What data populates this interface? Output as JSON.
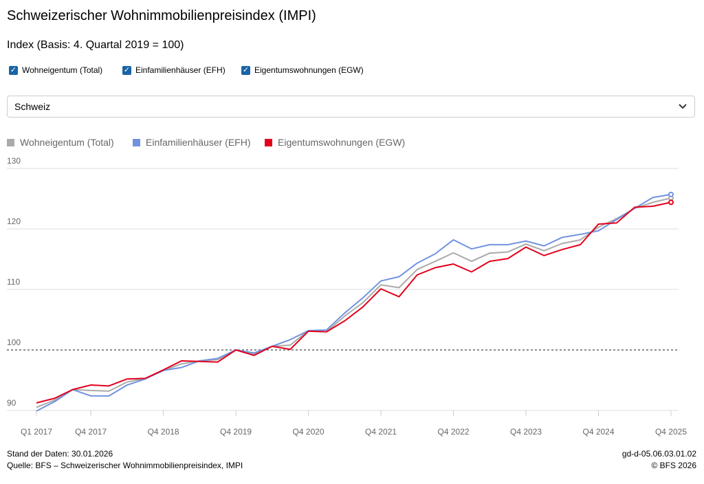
{
  "title": "Schweizerischer Wohnimmobilienpreisindex (IMPI)",
  "subtitle": "Index (Basis: 4. Quartal 2019 = 100)",
  "checkboxes": [
    {
      "label": "Wohneigentum (Total)",
      "checked": true
    },
    {
      "label": "Einfamilienhäuser (EFH)",
      "checked": true
    },
    {
      "label": "Eigentumswohnungen (EGW)",
      "checked": true
    }
  ],
  "dropdown": {
    "selected": "Schweiz",
    "icon": "chevron-down-icon"
  },
  "footer": {
    "stand": "Stand der Daten: 30.01.2026",
    "quelle": "Quelle: BFS – Schweizerischer Wohnimmobilienpreisindex, IMPI",
    "code": "gd-d-05.06.03.01.02",
    "copyright": "© BFS 2026"
  },
  "chart_data": {
    "type": "line",
    "ylim": [
      90,
      130
    ],
    "yticks": [
      "90",
      "100",
      "110",
      "120",
      "130"
    ],
    "reference_line": 100,
    "grid": true,
    "legend_position": "top-left",
    "x": [
      "Q1 2017",
      "Q2 2017",
      "Q3 2017",
      "Q4 2017",
      "Q1 2018",
      "Q2 2018",
      "Q3 2018",
      "Q4 2018",
      "Q1 2019",
      "Q2 2019",
      "Q3 2019",
      "Q4 2019",
      "Q1 2020",
      "Q2 2020",
      "Q3 2020",
      "Q4 2020",
      "Q1 2021",
      "Q2 2021",
      "Q3 2021",
      "Q4 2021",
      "Q1 2022",
      "Q2 2022",
      "Q3 2022",
      "Q4 2022",
      "Q1 2023",
      "Q2 2023",
      "Q3 2023",
      "Q4 2023",
      "Q1 2024",
      "Q2 2024",
      "Q3 2024",
      "Q4 2024",
      "Q1 2025",
      "Q2 2025",
      "Q3 2025",
      "Q4 2025"
    ],
    "xtick_labels": [
      "Q1 2017",
      "Q4 2017",
      "Q4 2018",
      "Q4 2019",
      "Q4 2020",
      "Q4 2021",
      "Q4 2022",
      "Q4 2023",
      "Q4 2024",
      "Q4 2025"
    ],
    "series": [
      {
        "name": "Wohneigentum (Total)",
        "color": "#aaaaaa",
        "values": [
          90.5,
          91.7,
          93.45,
          93.3,
          93.2,
          94.7,
          95.3,
          96.6,
          97.7,
          98.2,
          98.4,
          100.0,
          99.3,
          100.6,
          100.8,
          103.2,
          103.0,
          105.6,
          107.8,
          110.75,
          110.3,
          113.3,
          114.65,
          116.05,
          114.65,
          116.0,
          116.2,
          117.5,
          116.4,
          117.6,
          118.2,
          120.3,
          121.7,
          123.4,
          124.4,
          125.1
        ]
      },
      {
        "name": "Einfamilienhäuser (EFH)",
        "color": "#7092e0",
        "values": [
          89.9,
          91.45,
          93.45,
          92.4,
          92.4,
          94.2,
          95.2,
          96.6,
          97.1,
          98.2,
          98.6,
          100.0,
          99.5,
          100.6,
          101.7,
          103.2,
          103.3,
          106.1,
          108.6,
          111.4,
          112.1,
          114.35,
          115.9,
          118.2,
          116.7,
          117.4,
          117.4,
          118.0,
          117.2,
          118.6,
          119.1,
          119.7,
          121.55,
          123.4,
          125.2,
          125.7
        ]
      },
      {
        "name": "Eigentumswohnungen (EGW)",
        "color": "#e3001b",
        "values": [
          91.25,
          92.0,
          93.45,
          94.2,
          94.05,
          95.2,
          95.3,
          96.7,
          98.2,
          98.1,
          98.0,
          100.0,
          99.1,
          100.6,
          100.1,
          103.1,
          103.0,
          104.8,
          107.1,
          110.1,
          108.8,
          112.4,
          113.6,
          114.2,
          112.9,
          114.65,
          115.1,
          117.0,
          115.6,
          116.6,
          117.4,
          120.8,
          121.0,
          123.6,
          123.75,
          124.4
        ]
      }
    ]
  }
}
